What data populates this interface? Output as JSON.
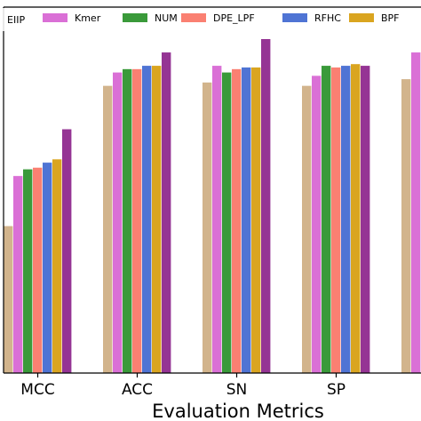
{
  "chart_data": {
    "type": "bar",
    "title": "",
    "xlabel": "Evaluation Metrics",
    "ylabel": "",
    "ylim": [
      0,
      1
    ],
    "grid": false,
    "legend_position": "top",
    "categories": [
      "MCC",
      "ACC",
      "SN",
      "SP",
      ""
    ],
    "series": [
      {
        "name": "EIIP",
        "color": "#d2b48c",
        "values": [
          0.44,
          0.86,
          0.87,
          0.86,
          0.88
        ]
      },
      {
        "name": "Kmer",
        "color": "#da70d6",
        "values": [
          0.59,
          0.9,
          0.92,
          0.89,
          0.96
        ]
      },
      {
        "name": "NUM",
        "color": "#3a9a3a",
        "values": [
          0.61,
          0.91,
          0.9,
          0.92,
          null
        ]
      },
      {
        "name": "DPE_LPF",
        "color": "#fa8072",
        "values": [
          0.615,
          0.91,
          0.91,
          0.915,
          null
        ]
      },
      {
        "name": "RFHC",
        "color": "#4f74d4",
        "values": [
          0.63,
          0.92,
          0.915,
          0.92,
          null
        ]
      },
      {
        "name": "BPF",
        "color": "#daa520",
        "values": [
          0.64,
          0.92,
          0.915,
          0.925,
          null
        ]
      },
      {
        "name": "",
        "color": "#953494",
        "values": [
          0.73,
          0.96,
          1.0,
          0.92,
          null
        ]
      }
    ]
  }
}
